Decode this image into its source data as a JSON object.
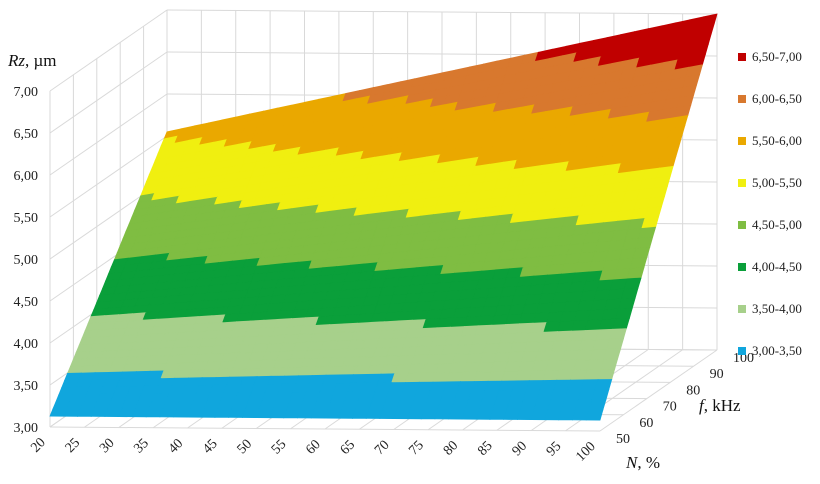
{
  "chart_data": {
    "type": "surface",
    "z_axis": {
      "label_italic": "Rz",
      "label_rest": ", µm",
      "ticks": [
        "3,00",
        "3,50",
        "4,00",
        "4,50",
        "5,00",
        "5,50",
        "6,00",
        "6,50",
        "7,00"
      ],
      "range": [
        3.0,
        7.0
      ]
    },
    "x_axis": {
      "label_italic": "N",
      "label_rest": ", %",
      "ticks": [
        "20",
        "25",
        "30",
        "35",
        "40",
        "45",
        "50",
        "55",
        "60",
        "65",
        "70",
        "75",
        "80",
        "85",
        "90",
        "95",
        "100"
      ],
      "range": [
        20,
        100
      ]
    },
    "y_axis": {
      "label_italic": "f",
      "label_rest": ", kHz",
      "ticks": [
        "50",
        "60",
        "70",
        "80",
        "90",
        "100"
      ],
      "range": [
        50,
        100
      ]
    },
    "surface_corners": [
      {
        "N": 20,
        "f": 50,
        "Rz": 3.13
      },
      {
        "N": 100,
        "f": 50,
        "Rz": 3.13
      },
      {
        "N": 20,
        "f": 100,
        "Rz": 5.55
      },
      {
        "N": 100,
        "f": 100,
        "Rz": 7.0
      }
    ],
    "legend": {
      "position": "right",
      "entries": [
        {
          "label": "6,50-7,00",
          "color": "#c00000"
        },
        {
          "label": "6,00-6,50",
          "color": "#d8782e"
        },
        {
          "label": "5,50-6,00",
          "color": "#eaa800"
        },
        {
          "label": "5,00-5,50",
          "color": "#f0ef10"
        },
        {
          "label": "4,50-5,00",
          "color": "#7fbd42"
        },
        {
          "label": "4,00-4,50",
          "color": "#0a9f3a"
        },
        {
          "label": "3,50-4,00",
          "color": "#a7d08b"
        },
        {
          "label": "3,00-3,50",
          "color": "#10a6dd"
        }
      ]
    },
    "grid": true
  }
}
